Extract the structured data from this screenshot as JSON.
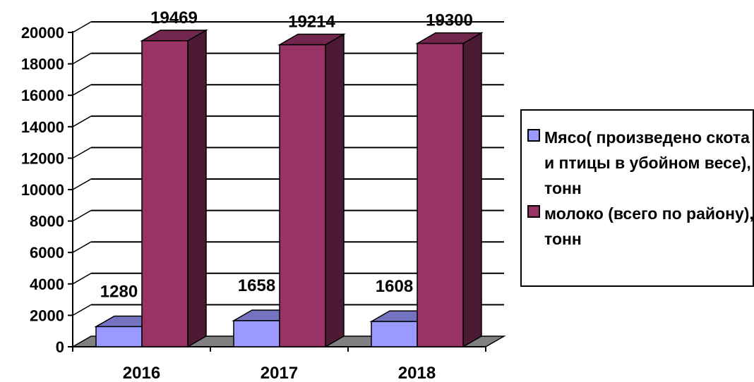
{
  "chart_data": {
    "type": "bar",
    "categories": [
      "2016",
      "2017",
      "2018"
    ],
    "series": [
      {
        "name": "Мясо( произведено скота и птицы в убойном весе), тонн",
        "values": [
          1280,
          1658,
          1608
        ],
        "color": "#9999FF"
      },
      {
        "name": "молоко (всего по району), тонн",
        "values": [
          19469,
          19214,
          19300
        ],
        "color": "#993366"
      }
    ],
    "ylim": [
      0,
      20000
    ],
    "yticks": [
      0,
      2000,
      4000,
      6000,
      8000,
      10000,
      12000,
      14000,
      16000,
      18000,
      20000
    ],
    "grid": true,
    "legend_position": "right",
    "title": "",
    "xlabel": "",
    "ylabel": ""
  }
}
